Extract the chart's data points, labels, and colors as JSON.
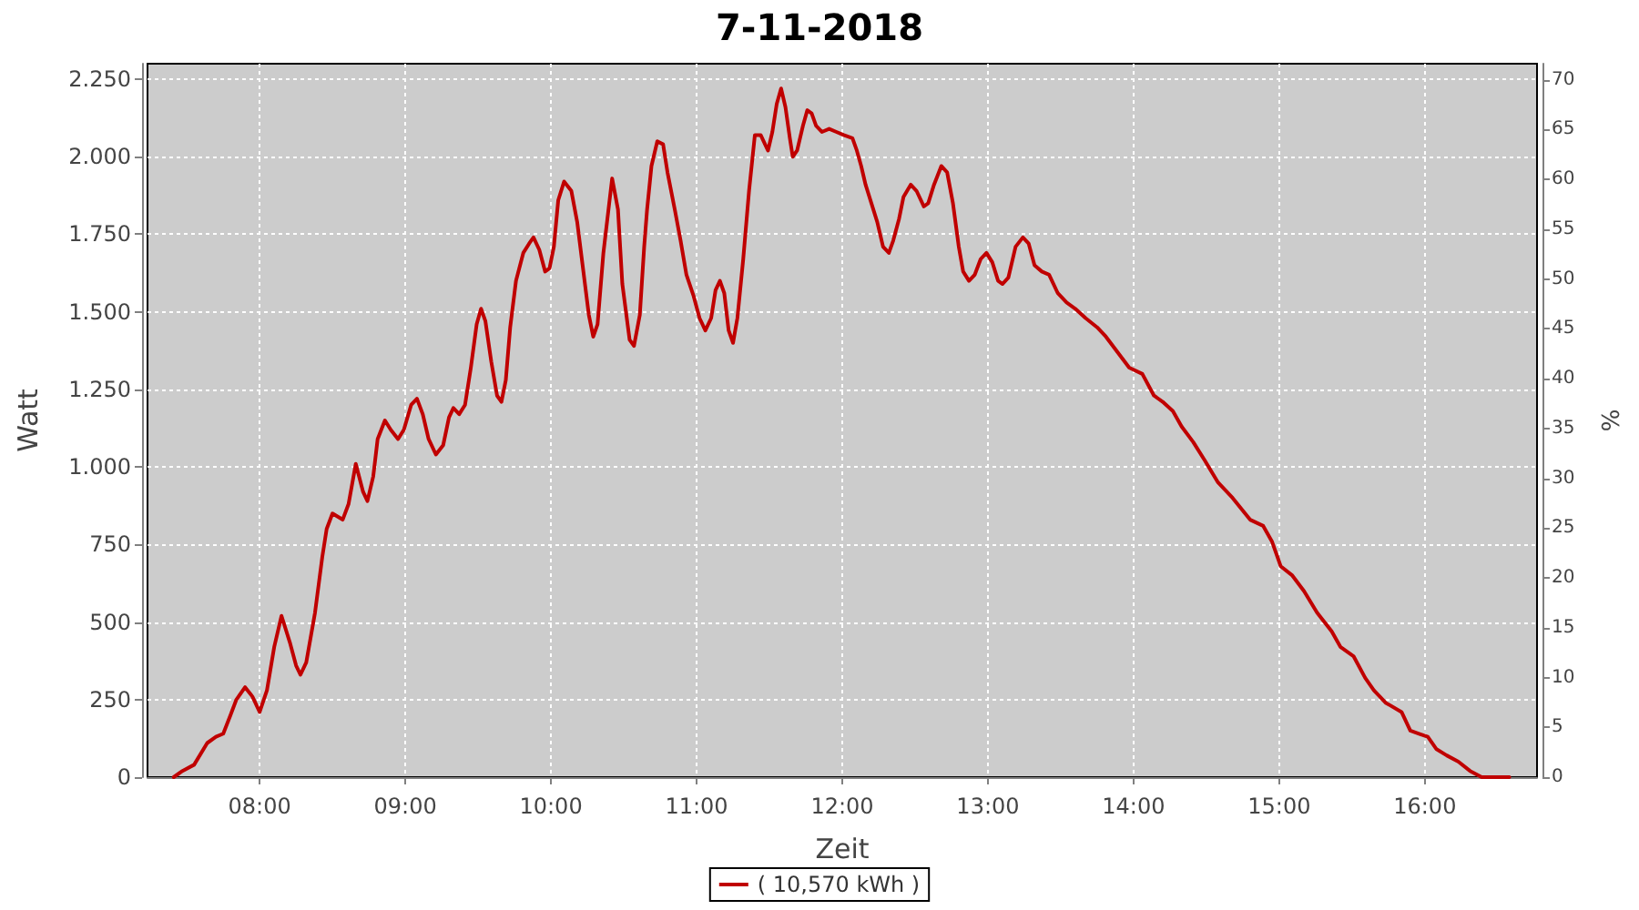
{
  "chart_data": {
    "type": "line",
    "title": "7-11-2018",
    "xlabel": "Zeit",
    "ylabel": "Watt",
    "y2label": "%",
    "xlim": [
      7.23,
      16.77
    ],
    "xticks": [
      {
        "value": 8,
        "label": "08:00"
      },
      {
        "value": 9,
        "label": "09:00"
      },
      {
        "value": 10,
        "label": "10:00"
      },
      {
        "value": 11,
        "label": "11:00"
      },
      {
        "value": 12,
        "label": "12:00"
      },
      {
        "value": 13,
        "label": "13:00"
      },
      {
        "value": 14,
        "label": "14:00"
      },
      {
        "value": 15,
        "label": "15:00"
      },
      {
        "value": 16,
        "label": "16:00"
      }
    ],
    "ylim": [
      0,
      2300
    ],
    "yticks": [
      0,
      250,
      500,
      750,
      {
        "value": 1000,
        "label": "1.000"
      },
      {
        "value": 1250,
        "label": "1.250"
      },
      {
        "value": 1500,
        "label": "1.500"
      },
      {
        "value": 1750,
        "label": "1.750"
      },
      {
        "value": 2000,
        "label": "2.000"
      },
      {
        "value": 2250,
        "label": "2.250"
      }
    ],
    "y2lim": [
      0,
      71.6
    ],
    "y2ticks": [
      0,
      5,
      10,
      15,
      20,
      25,
      30,
      35,
      40,
      45,
      50,
      55,
      60,
      65,
      70
    ],
    "grid": true,
    "legend": "bottom",
    "marker": "none",
    "line_style": "solid",
    "series": [
      {
        "name": "( 10,570 kWh )",
        "color": "#c00000",
        "x": [
          7.41,
          7.47,
          7.55,
          7.64,
          7.7,
          7.75,
          7.8,
          7.84,
          7.9,
          7.95,
          8.0,
          8.05,
          8.1,
          8.15,
          8.21,
          8.25,
          8.28,
          8.32,
          8.38,
          8.43,
          8.46,
          8.5,
          8.57,
          8.61,
          8.66,
          8.71,
          8.74,
          8.78,
          8.81,
          8.86,
          8.9,
          8.95,
          8.99,
          9.04,
          9.08,
          9.12,
          9.16,
          9.21,
          9.26,
          9.3,
          9.33,
          9.37,
          9.41,
          9.45,
          9.49,
          9.52,
          9.55,
          9.59,
          9.63,
          9.66,
          9.69,
          9.72,
          9.76,
          9.81,
          9.85,
          9.88,
          9.92,
          9.96,
          9.99,
          10.02,
          10.05,
          10.09,
          10.14,
          10.18,
          10.22,
          10.26,
          10.29,
          10.32,
          10.36,
          10.42,
          10.46,
          10.49,
          10.54,
          10.57,
          10.61,
          10.64,
          10.66,
          10.69,
          10.73,
          10.77,
          10.8,
          10.85,
          10.89,
          10.93,
          10.98,
          11.02,
          11.06,
          11.1,
          11.13,
          11.16,
          11.19,
          11.22,
          11.25,
          11.28,
          11.32,
          11.36,
          11.4,
          11.44,
          11.47,
          11.49,
          11.52,
          11.55,
          11.58,
          11.61,
          11.64,
          11.66,
          11.69,
          11.73,
          11.76,
          11.79,
          11.82,
          11.86,
          11.91,
          11.96,
          12.01,
          12.07,
          12.1,
          12.13,
          12.16,
          12.2,
          12.24,
          12.28,
          12.32,
          12.35,
          12.39,
          12.42,
          12.47,
          12.51,
          12.56,
          12.59,
          12.63,
          12.68,
          12.72,
          12.76,
          12.8,
          12.83,
          12.87,
          12.91,
          12.95,
          12.99,
          13.03,
          13.07,
          13.1,
          13.14,
          13.19,
          13.24,
          13.28,
          13.32,
          13.37,
          13.42,
          13.48,
          13.54,
          13.6,
          13.67,
          13.75,
          13.81,
          13.89,
          13.97,
          14.06,
          14.14,
          14.2,
          14.27,
          14.33,
          14.41,
          14.49,
          14.58,
          14.68,
          14.8,
          14.89,
          14.95,
          15.01,
          15.09,
          15.17,
          15.26,
          15.36,
          15.42,
          15.51,
          15.59,
          15.65,
          15.73,
          15.84,
          15.9,
          15.96,
          16.02,
          16.08,
          16.15,
          16.23,
          16.31,
          16.39,
          16.58
        ],
        "values": [
          0,
          20,
          40,
          110,
          130,
          140,
          200,
          250,
          290,
          260,
          210,
          280,
          420,
          520,
          430,
          360,
          330,
          370,
          530,
          710,
          800,
          850,
          830,
          880,
          1010,
          920,
          890,
          970,
          1090,
          1150,
          1120,
          1090,
          1120,
          1200,
          1220,
          1170,
          1090,
          1040,
          1070,
          1160,
          1190,
          1170,
          1200,
          1320,
          1460,
          1510,
          1470,
          1340,
          1230,
          1210,
          1280,
          1450,
          1600,
          1690,
          1720,
          1740,
          1700,
          1630,
          1640,
          1710,
          1860,
          1920,
          1890,
          1790,
          1640,
          1490,
          1420,
          1460,
          1690,
          1930,
          1830,
          1590,
          1410,
          1390,
          1490,
          1710,
          1830,
          1970,
          2050,
          2040,
          1950,
          1830,
          1730,
          1620,
          1550,
          1480,
          1440,
          1480,
          1570,
          1600,
          1560,
          1440,
          1400,
          1480,
          1670,
          1890,
          2070,
          2070,
          2040,
          2020,
          2080,
          2170,
          2220,
          2160,
          2060,
          2000,
          2020,
          2100,
          2150,
          2140,
          2100,
          2080,
          2090,
          2080,
          2070,
          2060,
          2020,
          1970,
          1910,
          1850,
          1790,
          1710,
          1690,
          1730,
          1800,
          1870,
          1910,
          1890,
          1840,
          1850,
          1910,
          1970,
          1950,
          1850,
          1710,
          1630,
          1600,
          1620,
          1670,
          1690,
          1660,
          1600,
          1590,
          1610,
          1710,
          1740,
          1720,
          1650,
          1630,
          1620,
          1560,
          1530,
          1510,
          1480,
          1450,
          1420,
          1370,
          1320,
          1300,
          1230,
          1210,
          1180,
          1130,
          1080,
          1020,
          950,
          900,
          830,
          810,
          760,
          680,
          650,
          600,
          530,
          470,
          420,
          390,
          320,
          280,
          240,
          210,
          150,
          140,
          130,
          90,
          70,
          50,
          20,
          0,
          0
        ]
      }
    ]
  }
}
